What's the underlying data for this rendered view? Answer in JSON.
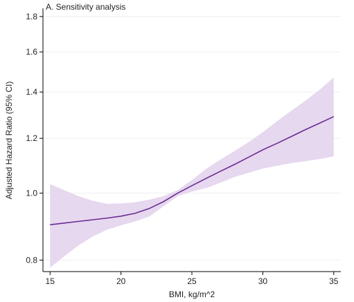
{
  "chart_data": {
    "type": "line",
    "title": "A. Sensitivity analysis",
    "xlabel": "BMI, kg/m^2",
    "ylabel": "Adjusted Hazard Ratio (95% CI)",
    "xlim": [
      14.5,
      35.5
    ],
    "ylim": [
      0.77,
      1.85
    ],
    "y_scale": "log",
    "x_ticks": [
      15,
      20,
      25,
      30,
      35
    ],
    "x_tick_labels": [
      "15",
      "20",
      "25",
      "30",
      "35"
    ],
    "y_ticks": [
      0.8,
      1.0,
      1.2,
      1.4,
      1.6,
      1.8
    ],
    "y_tick_labels": [
      "0.8",
      "1.0",
      "1.2",
      "1.4",
      "1.6",
      "1.8"
    ],
    "grid": "horizontal",
    "series": [
      {
        "kind": "estimate",
        "color": "#6b2c91",
        "x": [
          15,
          16,
          17,
          18,
          19,
          20,
          21,
          22,
          23,
          24,
          25,
          26,
          27,
          28,
          29,
          30,
          31,
          32,
          33,
          34,
          35
        ],
        "y": [
          0.9,
          0.905,
          0.91,
          0.915,
          0.92,
          0.926,
          0.935,
          0.95,
          0.972,
          1.0,
          1.025,
          1.05,
          1.075,
          1.1,
          1.127,
          1.155,
          1.18,
          1.207,
          1.235,
          1.262,
          1.29
        ]
      },
      {
        "kind": "confidence_band",
        "color": "#e6d8ef",
        "x": [
          15,
          16,
          17,
          18,
          19,
          20,
          21,
          22,
          23,
          24,
          25,
          26,
          27,
          28,
          29,
          30,
          31,
          32,
          33,
          34,
          35
        ],
        "lower": [
          0.78,
          0.81,
          0.84,
          0.865,
          0.885,
          0.898,
          0.91,
          0.925,
          0.957,
          0.99,
          1.005,
          1.017,
          1.035,
          1.055,
          1.07,
          1.085,
          1.095,
          1.105,
          1.112,
          1.12,
          1.13
        ],
        "upper": [
          1.03,
          1.01,
          0.99,
          0.975,
          0.965,
          0.966,
          0.97,
          0.978,
          0.99,
          1.01,
          1.044,
          1.084,
          1.118,
          1.15,
          1.185,
          1.225,
          1.27,
          1.315,
          1.36,
          1.41,
          1.47
        ]
      }
    ]
  }
}
